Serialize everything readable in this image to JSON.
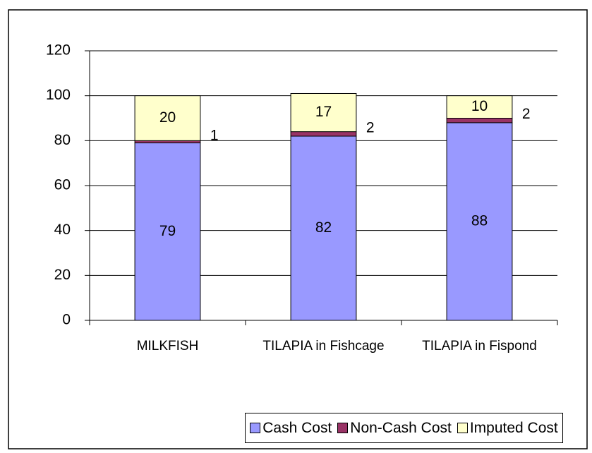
{
  "chart_data": {
    "type": "bar",
    "stacked": true,
    "categories": [
      "MILKFISH",
      "TILAPIA in Fishcage",
      "TILAPIA in Fispond"
    ],
    "series": [
      {
        "name": "Cash Cost",
        "color": "#9999ff",
        "values": [
          79,
          82,
          88
        ]
      },
      {
        "name": "Non-Cash Cost",
        "color": "#993366",
        "values": [
          1,
          2,
          2
        ]
      },
      {
        "name": "Imputed Cost",
        "color": "#ffffcc",
        "values": [
          20,
          17,
          10
        ]
      }
    ],
    "ylim": [
      0,
      120
    ],
    "yticks": [
      0,
      20,
      40,
      60,
      80,
      100,
      120
    ],
    "grid": true,
    "legend": "bottom"
  }
}
